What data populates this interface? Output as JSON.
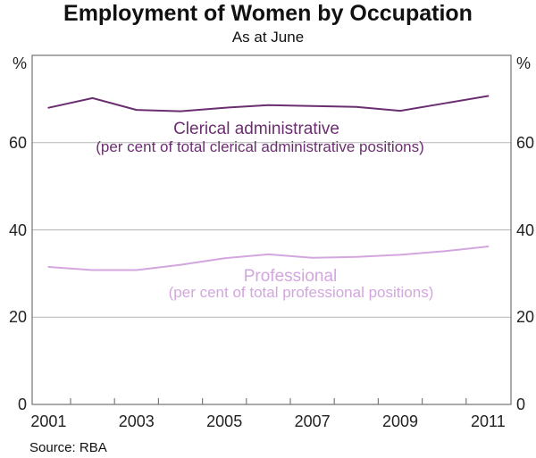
{
  "chart_data": {
    "type": "line",
    "title": "Employment of Women by Occupation",
    "subtitle": "As at June",
    "ylabel": "%",
    "unit": "%",
    "source": "Source: RBA",
    "x": [
      2001,
      2002,
      2003,
      2004,
      2005,
      2006,
      2007,
      2008,
      2009,
      2010,
      2011
    ],
    "xtick_labels": [
      "2001",
      "2003",
      "2005",
      "2007",
      "2009",
      "2011"
    ],
    "ylim": [
      0,
      80
    ],
    "yticks": [
      0,
      20,
      40,
      60
    ],
    "grid": true,
    "legend": "inline-text-labels",
    "colors": {
      "clerical": "#6b2e70",
      "professional": "#d3a6df",
      "gridline": "#b5b5b5",
      "frame": "#7c7c7c"
    },
    "series": [
      {
        "name": "Clerical administrative",
        "sublabel": "(per cent of total clerical administrative positions)",
        "color": "#6b2e70",
        "values": [
          68.0,
          70.2,
          67.5,
          67.2,
          68.0,
          68.6,
          68.4,
          68.2,
          67.3,
          69.0,
          70.7
        ]
      },
      {
        "name": "Professional",
        "sublabel": "(per cent of total professional positions)",
        "color": "#d3a6df",
        "values": [
          31.5,
          30.8,
          30.8,
          32.0,
          33.5,
          34.4,
          33.6,
          33.8,
          34.3,
          35.1,
          36.2
        ]
      }
    ]
  }
}
